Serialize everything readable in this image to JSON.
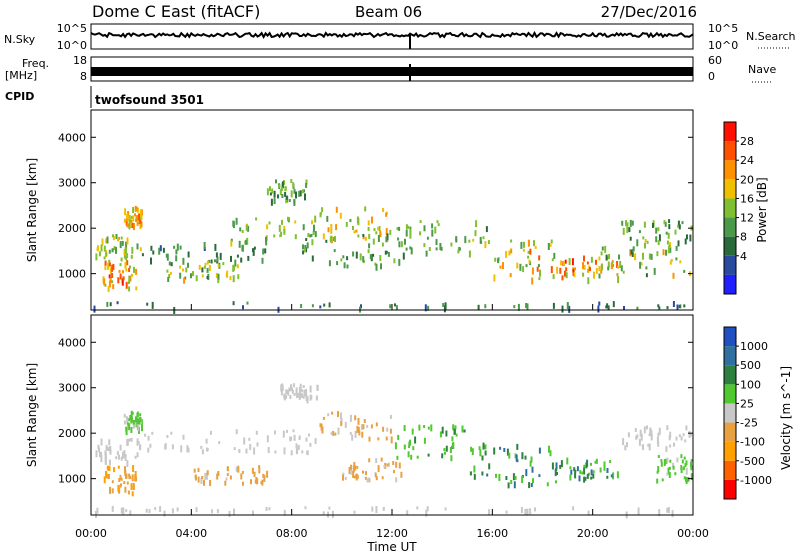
{
  "header": {
    "title": "Dome C East (fitACF)",
    "beam": "Beam 06",
    "date": "27/Dec/2016"
  },
  "strips": {
    "nsky_label": "N.Sky",
    "nsky_ticks": [
      "10^5",
      "10^0"
    ],
    "nsearch_label": "N.Search",
    "nsearch_ticks": [
      "10^5",
      "10^0"
    ],
    "freq_label": "Freq.",
    "freq_unit": "[MHz]",
    "freq_ticks": [
      "18",
      "8"
    ],
    "nave_label": "Nave",
    "nave_ticks": [
      "60",
      "0"
    ],
    "cpid_label": "CPID",
    "cpid_value": "twofsound 3501"
  },
  "x_axis": {
    "label": "Time UT",
    "ticks": [
      "00:00",
      "04:00",
      "08:00",
      "12:00",
      "16:00",
      "20:00",
      "00:00"
    ]
  },
  "colors": {
    "power": [
      "#2020ff",
      "#2a4aa0",
      "#2a6a3a",
      "#4a9a4a",
      "#80c030",
      "#f0c000",
      "#ff9000",
      "#ff5000",
      "#ff1000"
    ],
    "velocity": [
      "#ff0000",
      "#ff6000",
      "#ffa000",
      "#e8a040",
      "#c8c8c8",
      "#50c830",
      "#2e8040",
      "#3070a0",
      "#2050c0"
    ]
  },
  "chart_data": [
    {
      "type": "heatmap",
      "name": "power",
      "ylabel": "Slant Range [km]",
      "yticks": [
        1000,
        2000,
        3000,
        4000
      ],
      "ylim": [
        200,
        4600
      ],
      "xlim_hours": [
        0,
        24
      ],
      "colorbar": {
        "label": "Power [dB]",
        "ticks": [
          "28",
          "24",
          "20",
          "16",
          "12",
          "8",
          "4"
        ],
        "range": [
          0,
          32
        ]
      },
      "patches": [
        {
          "x": [
            0.0,
            2.0
          ],
          "y": [
            1300,
            1900
          ],
          "v": [
            12,
            20
          ]
        },
        {
          "x": [
            0.4,
            1.8
          ],
          "y": [
            700,
            1300
          ],
          "v": [
            14,
            30
          ]
        },
        {
          "x": [
            1.3,
            2.0
          ],
          "y": [
            2100,
            2500
          ],
          "v": [
            16,
            26
          ]
        },
        {
          "x": [
            2.0,
            7.0
          ],
          "y": [
            1300,
            1700
          ],
          "v": [
            6,
            14
          ]
        },
        {
          "x": [
            3.0,
            6.0
          ],
          "y": [
            900,
            1300
          ],
          "v": [
            10,
            22
          ]
        },
        {
          "x": [
            5.5,
            9.0
          ],
          "y": [
            1700,
            2300
          ],
          "v": [
            10,
            20
          ]
        },
        {
          "x": [
            7.0,
            8.6
          ],
          "y": [
            2600,
            3100
          ],
          "v": [
            8,
            18
          ]
        },
        {
          "x": [
            9.0,
            12.0
          ],
          "y": [
            1800,
            2500
          ],
          "v": [
            14,
            24
          ]
        },
        {
          "x": [
            8.0,
            12.5
          ],
          "y": [
            1200,
            1900
          ],
          "v": [
            8,
            16
          ]
        },
        {
          "x": [
            12.0,
            16.0
          ],
          "y": [
            1500,
            2200
          ],
          "v": [
            10,
            18
          ]
        },
        {
          "x": [
            16.0,
            18.5
          ],
          "y": [
            900,
            1800
          ],
          "v": [
            12,
            26
          ]
        },
        {
          "x": [
            18.5,
            21.0
          ],
          "y": [
            900,
            1400
          ],
          "v": [
            16,
            30
          ]
        },
        {
          "x": [
            20.0,
            24.0
          ],
          "y": [
            1000,
            1700
          ],
          "v": [
            10,
            22
          ]
        },
        {
          "x": [
            21.0,
            24.0
          ],
          "y": [
            1700,
            2200
          ],
          "v": [
            8,
            18
          ]
        },
        {
          "x": [
            0.0,
            24.0
          ],
          "y": [
            250,
            400
          ],
          "v": [
            4,
            12
          ]
        }
      ]
    },
    {
      "type": "heatmap",
      "name": "velocity",
      "ylabel": "Slant Range [km]",
      "yticks": [
        1000,
        2000,
        3000,
        4000
      ],
      "ylim": [
        200,
        4600
      ],
      "xlim_hours": [
        0,
        24
      ],
      "colorbar": {
        "label": "Velocity [m s^-1]",
        "ticks": [
          "1000",
          "500",
          "100",
          "25",
          "-25",
          "-100",
          "-500",
          "-1000"
        ],
        "range": [
          -1200,
          1200
        ]
      },
      "patches": [
        {
          "x": [
            0.0,
            2.0
          ],
          "y": [
            1400,
            1900
          ],
          "v": [
            0,
            0
          ]
        },
        {
          "x": [
            0.5,
            1.8
          ],
          "y": [
            700,
            1300
          ],
          "v": [
            -600,
            -150
          ]
        },
        {
          "x": [
            1.3,
            2.0
          ],
          "y": [
            2100,
            2500
          ],
          "v": [
            100,
            200
          ]
        },
        {
          "x": [
            2.0,
            9.0
          ],
          "y": [
            1600,
            2100
          ],
          "v": [
            0,
            0
          ]
        },
        {
          "x": [
            4.0,
            7.0
          ],
          "y": [
            900,
            1300
          ],
          "v": [
            -400,
            -100
          ]
        },
        {
          "x": [
            7.5,
            9.0
          ],
          "y": [
            2800,
            3100
          ],
          "v": [
            0,
            0
          ]
        },
        {
          "x": [
            9.0,
            12.0
          ],
          "y": [
            1900,
            2500
          ],
          "v": [
            -300,
            -60
          ]
        },
        {
          "x": [
            10.0,
            12.5
          ],
          "y": [
            1000,
            1500
          ],
          "v": [
            -300,
            -80
          ]
        },
        {
          "x": [
            12.0,
            15.0
          ],
          "y": [
            1500,
            2200
          ],
          "v": [
            150,
            500
          ]
        },
        {
          "x": [
            15.0,
            18.5
          ],
          "y": [
            900,
            1800
          ],
          "v": [
            200,
            900
          ]
        },
        {
          "x": [
            18.5,
            21.0
          ],
          "y": [
            1000,
            1500
          ],
          "v": [
            200,
            800
          ]
        },
        {
          "x": [
            21.0,
            24.0
          ],
          "y": [
            1700,
            2200
          ],
          "v": [
            0,
            0
          ]
        },
        {
          "x": [
            22.5,
            24.0
          ],
          "y": [
            1000,
            1600
          ],
          "v": [
            100,
            300
          ]
        },
        {
          "x": [
            0.0,
            24.0
          ],
          "y": [
            250,
            400
          ],
          "v": [
            0,
            0
          ]
        }
      ]
    }
  ]
}
